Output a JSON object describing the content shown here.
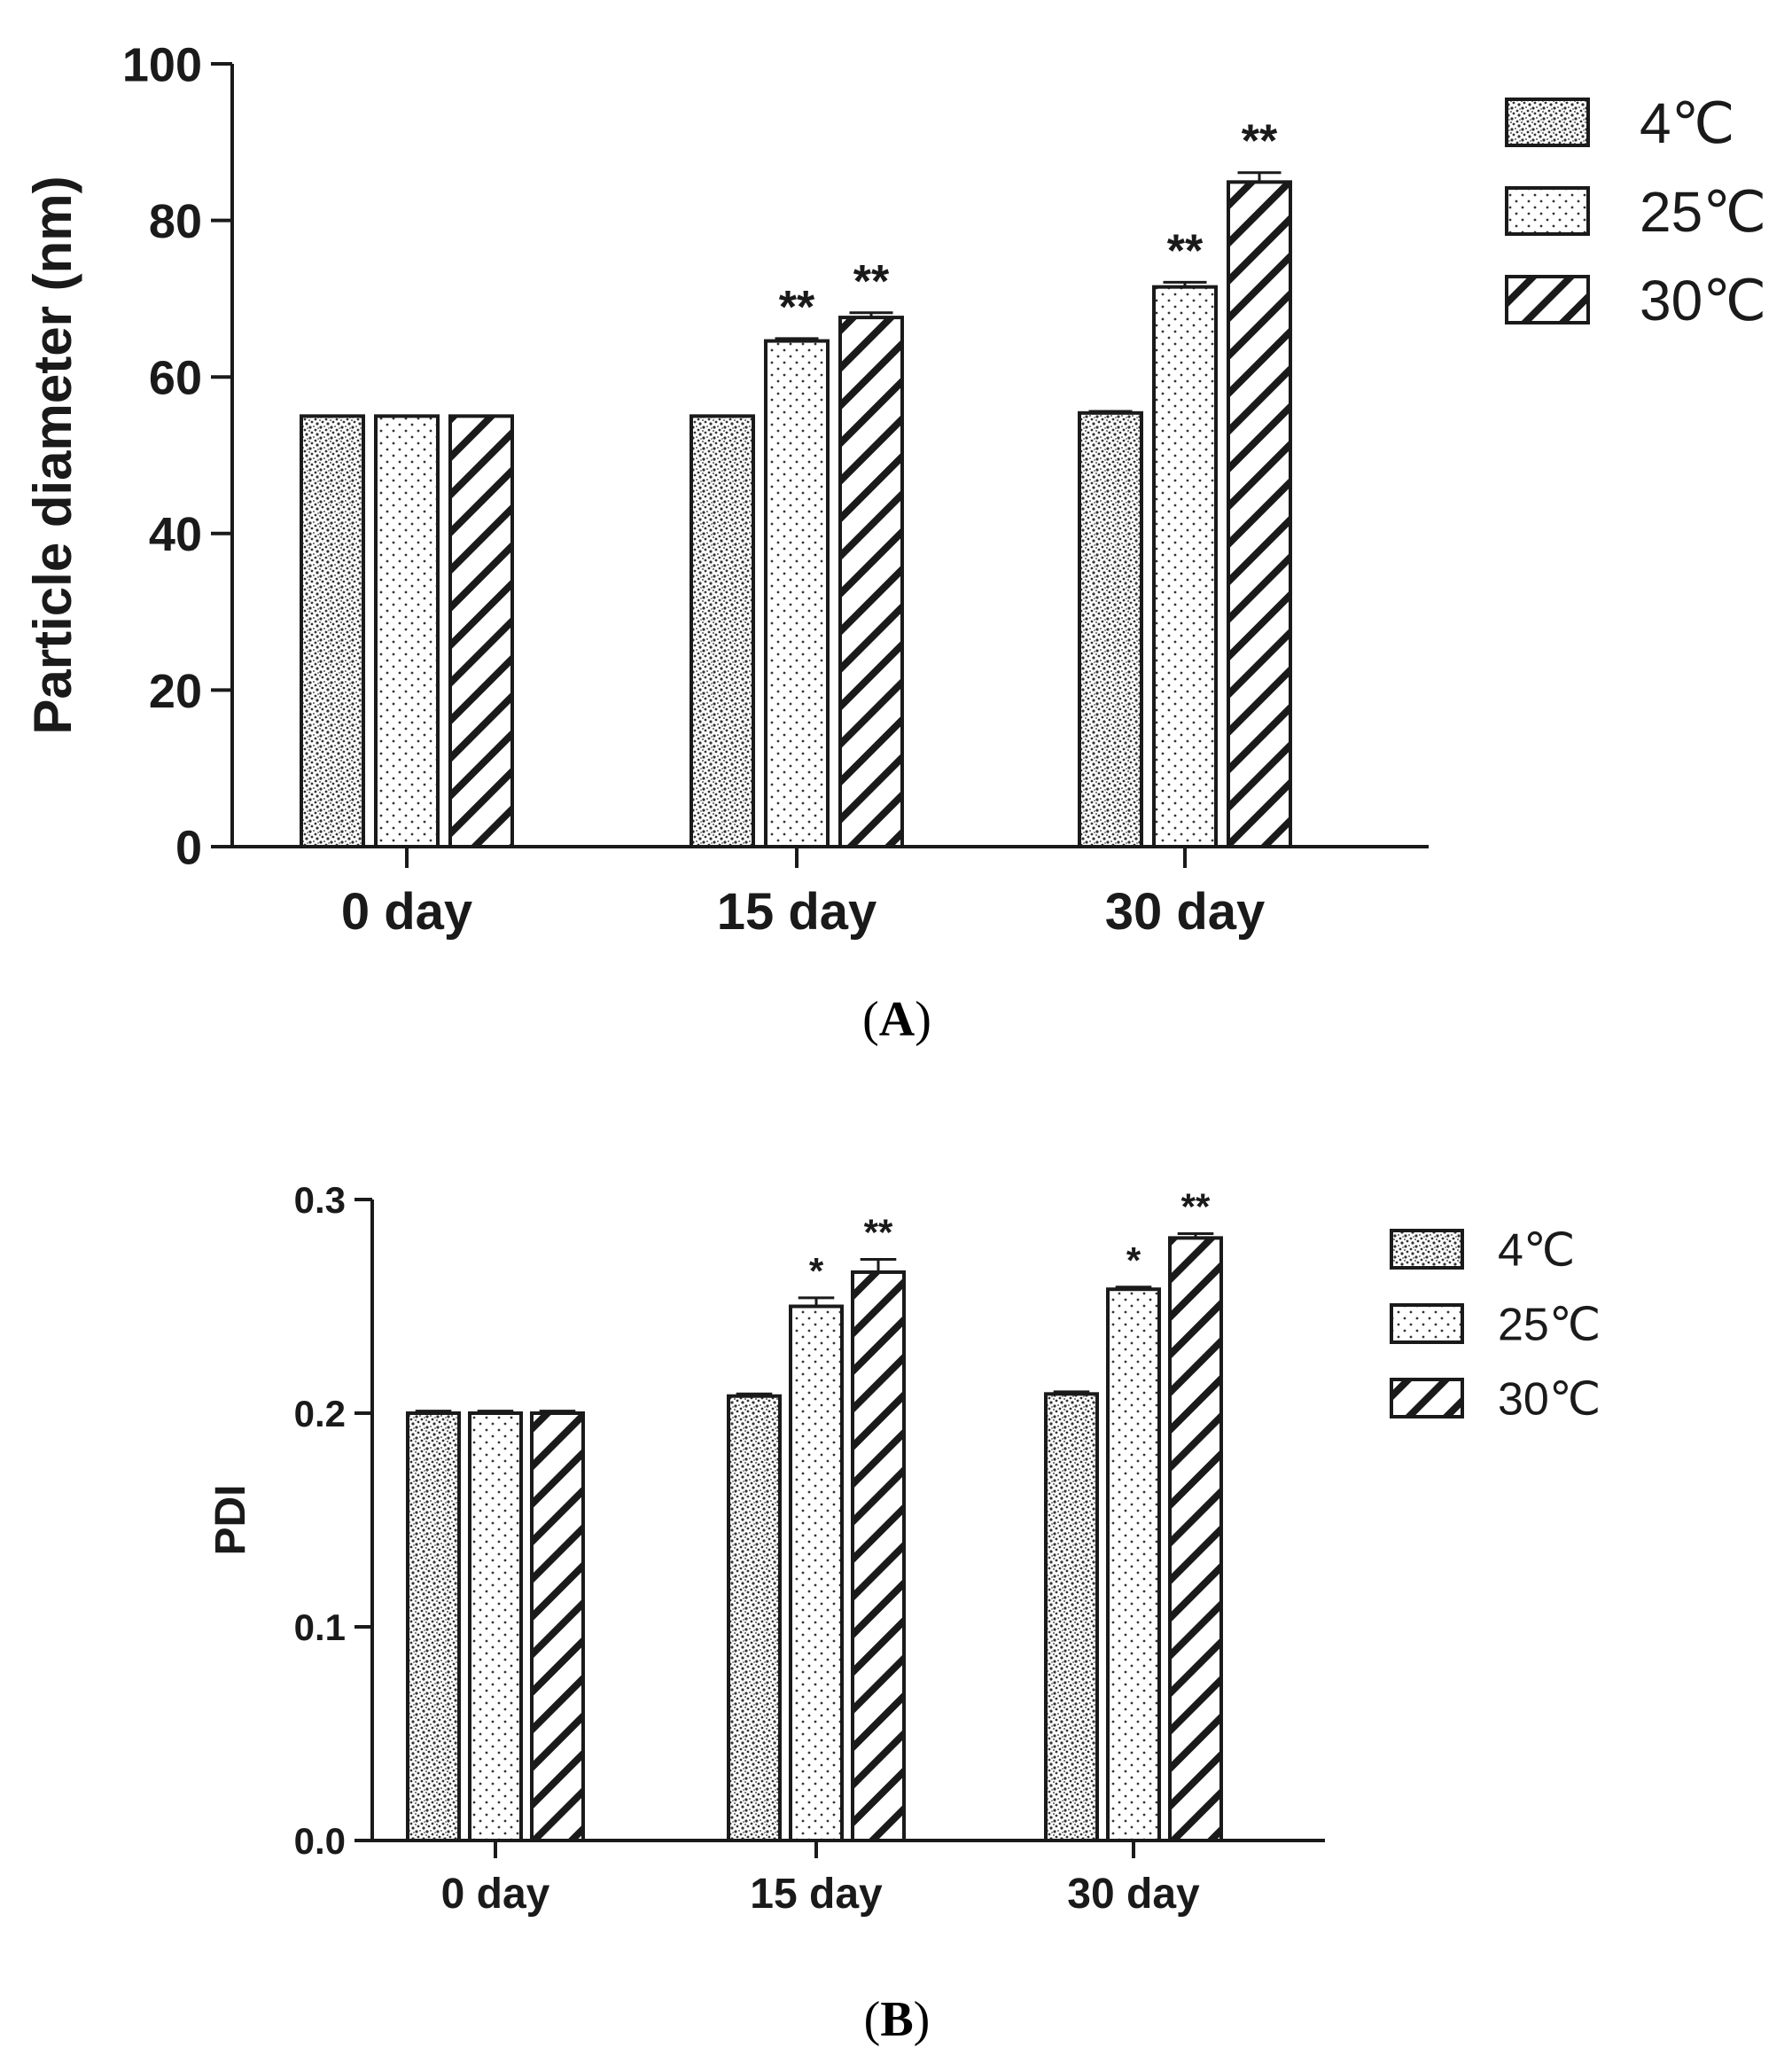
{
  "chart_data": [
    {
      "type": "bar",
      "panel": "A",
      "panel_label": "A",
      "title": "",
      "xlabel": "",
      "ylabel": "Particle diameter (nm)",
      "ylim": [
        0,
        100
      ],
      "yticks": [
        0,
        20,
        40,
        60,
        80,
        100
      ],
      "ytick_labels": [
        "0",
        "20",
        "40",
        "60",
        "80",
        "100"
      ],
      "categories": [
        "0 day",
        "15 day",
        "30 day"
      ],
      "series": [
        {
          "name": "4℃",
          "pattern": "speckle",
          "values": [
            55.0,
            55.0,
            55.4
          ],
          "errors": [
            0.0,
            0.0,
            0.2
          ],
          "significance": [
            "",
            "",
            ""
          ]
        },
        {
          "name": "25℃",
          "pattern": "dots",
          "values": [
            55.0,
            64.6,
            71.5
          ],
          "errors": [
            0.0,
            0.3,
            0.6
          ],
          "significance": [
            "",
            "**",
            "**"
          ]
        },
        {
          "name": "30℃",
          "pattern": "hatch",
          "values": [
            55.0,
            67.6,
            84.9
          ],
          "errors": [
            0.0,
            0.6,
            1.2
          ],
          "significance": [
            "",
            "**",
            "**"
          ]
        }
      ],
      "legend_position": "top-right"
    },
    {
      "type": "bar",
      "panel": "B",
      "panel_label": "B",
      "title": "",
      "xlabel": "",
      "ylabel": "PDI",
      "ylim": [
        0,
        0.3
      ],
      "yticks": [
        0,
        0.1,
        0.2,
        0.3
      ],
      "ytick_labels": [
        "0.0",
        "0.1",
        "0.2",
        "0.3"
      ],
      "categories": [
        "0 day",
        "15 day",
        "30 day"
      ],
      "series": [
        {
          "name": "4℃",
          "pattern": "speckle",
          "values": [
            0.2,
            0.208,
            0.209
          ],
          "errors": [
            0.001,
            0.001,
            0.001
          ],
          "significance": [
            "",
            "",
            ""
          ]
        },
        {
          "name": "25℃",
          "pattern": "dots",
          "values": [
            0.2,
            0.25,
            0.258
          ],
          "errors": [
            0.001,
            0.004,
            0.001
          ],
          "significance": [
            "",
            "*",
            "*"
          ]
        },
        {
          "name": "30℃",
          "pattern": "hatch",
          "values": [
            0.2,
            0.266,
            0.282
          ],
          "errors": [
            0.001,
            0.006,
            0.002
          ],
          "significance": [
            "",
            "**",
            "**"
          ]
        }
      ],
      "legend_position": "top-right"
    }
  ]
}
